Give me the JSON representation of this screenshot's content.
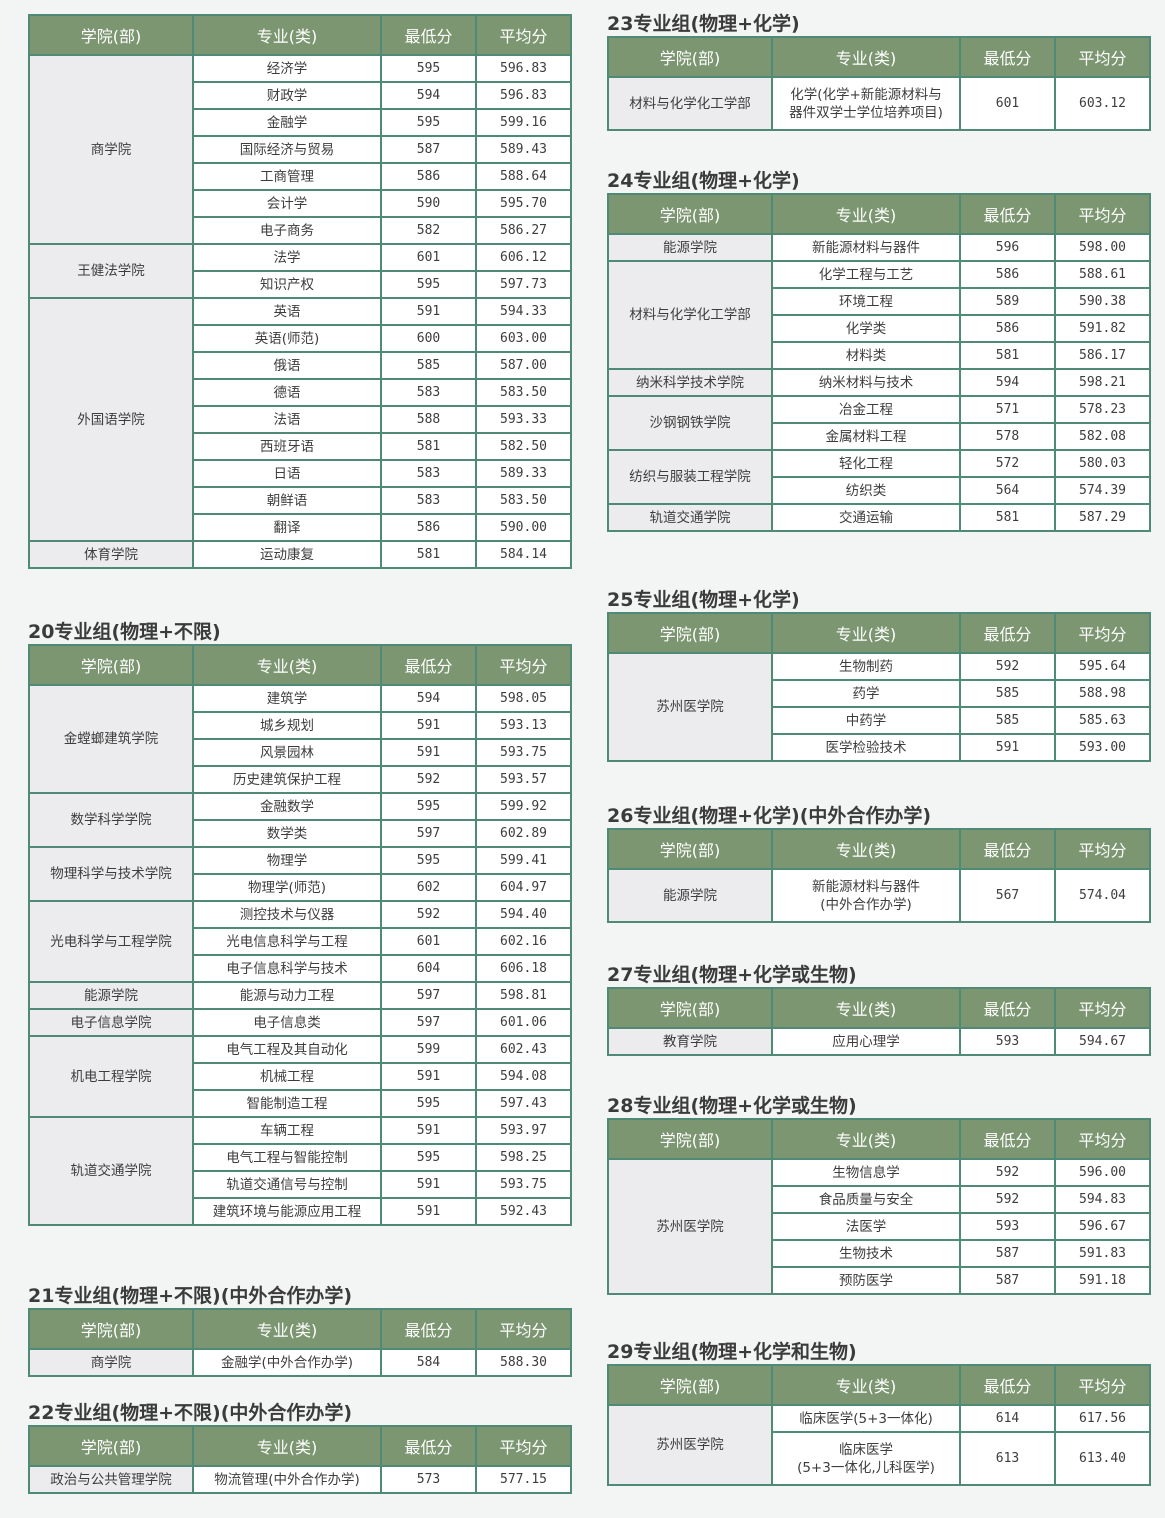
{
  "headers": [
    "学院(部)",
    "专业(类)",
    "最低分",
    "平均分"
  ],
  "sections": [
    {
      "side": "left",
      "title": "",
      "groups": [
        {
          "college": "商学院",
          "majors": [
            [
              "经济学",
              "595",
              "596.83"
            ],
            [
              "财政学",
              "594",
              "596.83"
            ],
            [
              "金融学",
              "595",
              "599.16"
            ],
            [
              "国际经济与贸易",
              "587",
              "589.43"
            ],
            [
              "工商管理",
              "586",
              "588.64"
            ],
            [
              "会计学",
              "590",
              "595.70"
            ],
            [
              "电子商务",
              "582",
              "586.27"
            ]
          ]
        },
        {
          "college": "王健法学院",
          "majors": [
            [
              "法学",
              "601",
              "606.12"
            ],
            [
              "知识产权",
              "595",
              "597.73"
            ]
          ]
        },
        {
          "college": "外国语学院",
          "majors": [
            [
              "英语",
              "591",
              "594.33"
            ],
            [
              "英语(师范)",
              "600",
              "603.00"
            ],
            [
              "俄语",
              "585",
              "587.00"
            ],
            [
              "德语",
              "583",
              "583.50"
            ],
            [
              "法语",
              "588",
              "593.33"
            ],
            [
              "西班牙语",
              "581",
              "582.50"
            ],
            [
              "日语",
              "583",
              "589.33"
            ],
            [
              "朝鲜语",
              "583",
              "583.50"
            ],
            [
              "翻译",
              "586",
              "590.00"
            ]
          ]
        },
        {
          "college": "体育学院",
          "majors": [
            [
              "运动康复",
              "581",
              "584.14"
            ]
          ]
        }
      ]
    },
    {
      "side": "left",
      "title": "20专业组(物理+不限)",
      "groups": [
        {
          "college": "金螳螂建筑学院",
          "majors": [
            [
              "建筑学",
              "594",
              "598.05"
            ],
            [
              "城乡规划",
              "591",
              "593.13"
            ],
            [
              "风景园林",
              "591",
              "593.75"
            ],
            [
              "历史建筑保护工程",
              "592",
              "593.57"
            ]
          ]
        },
        {
          "college": "数学科学学院",
          "majors": [
            [
              "金融数学",
              "595",
              "599.92"
            ],
            [
              "数学类",
              "597",
              "602.89"
            ]
          ]
        },
        {
          "college": "物理科学与技术学院",
          "majors": [
            [
              "物理学",
              "595",
              "599.41"
            ],
            [
              "物理学(师范)",
              "602",
              "604.97"
            ]
          ]
        },
        {
          "college": "光电科学与工程学院",
          "majors": [
            [
              "测控技术与仪器",
              "592",
              "594.40"
            ],
            [
              "光电信息科学与工程",
              "601",
              "602.16"
            ],
            [
              "电子信息科学与技术",
              "604",
              "606.18"
            ]
          ]
        },
        {
          "college": "能源学院",
          "majors": [
            [
              "能源与动力工程",
              "597",
              "598.81"
            ]
          ]
        },
        {
          "college": "电子信息学院",
          "majors": [
            [
              "电子信息类",
              "597",
              "601.06"
            ]
          ]
        },
        {
          "college": "机电工程学院",
          "majors": [
            [
              "电气工程及其自动化",
              "599",
              "602.43"
            ],
            [
              "机械工程",
              "591",
              "594.08"
            ],
            [
              "智能制造工程",
              "595",
              "597.43"
            ]
          ]
        },
        {
          "college": "轨道交通学院",
          "majors": [
            [
              "车辆工程",
              "591",
              "593.97"
            ],
            [
              "电气工程与智能控制",
              "595",
              "598.25"
            ],
            [
              "轨道交通信号与控制",
              "591",
              "593.75"
            ],
            [
              "建筑环境与能源应用工程",
              "591",
              "592.43"
            ]
          ]
        }
      ]
    },
    {
      "side": "left",
      "title": "21专业组(物理+不限)(中外合作办学)",
      "groups": [
        {
          "college": "商学院",
          "majors": [
            [
              "金融学(中外合作办学)",
              "584",
              "588.30"
            ]
          ]
        }
      ]
    },
    {
      "side": "left",
      "title": "22专业组(物理+不限)(中外合作办学)",
      "groups": [
        {
          "college": "政治与公共管理学院",
          "majors": [
            [
              "物流管理(中外合作办学)",
              "573",
              "577.15"
            ]
          ]
        }
      ]
    },
    {
      "side": "right",
      "title": "23专业组(物理+化学)",
      "groups": [
        {
          "college": "材料与化学化工学部",
          "majors": [
            [
              "化学(化学+新能源材料与\n器件双学士学位培养项目)",
              "601",
              "603.12"
            ]
          ]
        }
      ]
    },
    {
      "side": "right",
      "title": "24专业组(物理+化学)",
      "groups": [
        {
          "college": "能源学院",
          "majors": [
            [
              "新能源材料与器件",
              "596",
              "598.00"
            ]
          ]
        },
        {
          "college": "材料与化学化工学部",
          "majors": [
            [
              "化学工程与工艺",
              "586",
              "588.61"
            ],
            [
              "环境工程",
              "589",
              "590.38"
            ],
            [
              "化学类",
              "586",
              "591.82"
            ],
            [
              "材料类",
              "581",
              "586.17"
            ]
          ]
        },
        {
          "college": "纳米科学技术学院",
          "majors": [
            [
              "纳米材料与技术",
              "594",
              "598.21"
            ]
          ]
        },
        {
          "college": "沙钢钢铁学院",
          "majors": [
            [
              "冶金工程",
              "571",
              "578.23"
            ],
            [
              "金属材料工程",
              "578",
              "582.08"
            ]
          ]
        },
        {
          "college": "纺织与服装工程学院",
          "majors": [
            [
              "轻化工程",
              "572",
              "580.03"
            ],
            [
              "纺织类",
              "564",
              "574.39"
            ]
          ]
        },
        {
          "college": "轨道交通学院",
          "majors": [
            [
              "交通运输",
              "581",
              "587.29"
            ]
          ]
        }
      ]
    },
    {
      "side": "right",
      "title": "25专业组(物理+化学)",
      "groups": [
        {
          "college": "苏州医学院",
          "majors": [
            [
              "生物制药",
              "592",
              "595.64"
            ],
            [
              "药学",
              "585",
              "588.98"
            ],
            [
              "中药学",
              "585",
              "585.63"
            ],
            [
              "医学检验技术",
              "591",
              "593.00"
            ]
          ]
        }
      ]
    },
    {
      "side": "right",
      "title": "26专业组(物理+化学)(中外合作办学)",
      "groups": [
        {
          "college": "能源学院",
          "majors": [
            [
              "新能源材料与器件\n(中外合作办学)",
              "567",
              "574.04"
            ]
          ]
        }
      ]
    },
    {
      "side": "right",
      "title": "27专业组(物理+化学或生物)",
      "groups": [
        {
          "college": "教育学院",
          "majors": [
            [
              "应用心理学",
              "593",
              "594.67"
            ]
          ]
        }
      ]
    },
    {
      "side": "right",
      "title": "28专业组(物理+化学或生物)",
      "groups": [
        {
          "college": "苏州医学院",
          "majors": [
            [
              "生物信息学",
              "592",
              "596.00"
            ],
            [
              "食品质量与安全",
              "592",
              "594.83"
            ],
            [
              "法医学",
              "593",
              "596.67"
            ],
            [
              "生物技术",
              "587",
              "591.83"
            ],
            [
              "预防医学",
              "587",
              "591.18"
            ]
          ]
        }
      ]
    },
    {
      "side": "right",
      "title": "29专业组(物理+化学和生物)",
      "groups": [
        {
          "college": "苏州医学院",
          "majors": [
            [
              "临床医学(5+3一体化)",
              "614",
              "617.56"
            ],
            [
              "临床医学\n(5+3一体化,儿科医学)",
              "613",
              "613.40"
            ]
          ]
        }
      ]
    }
  ]
}
